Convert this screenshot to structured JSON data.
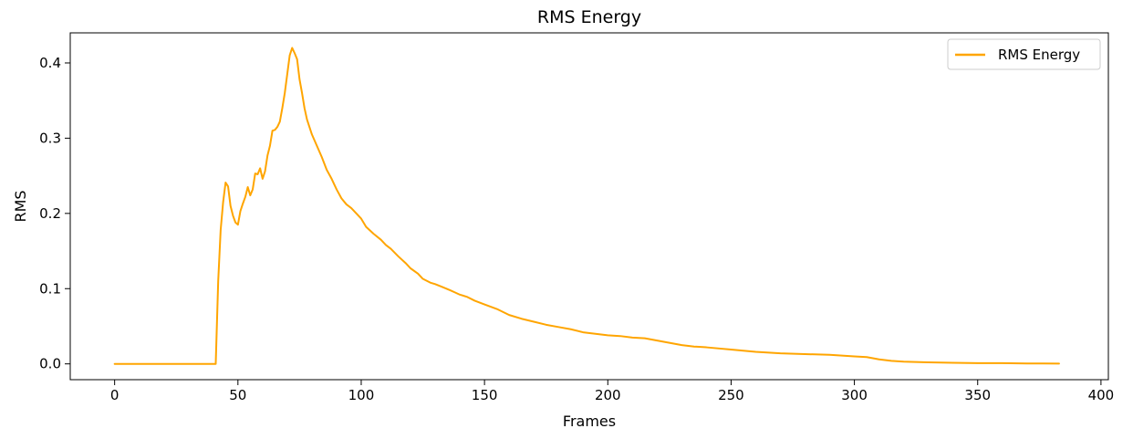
{
  "chart_data": {
    "type": "line",
    "title": "RMS Energy",
    "xlabel": "Frames",
    "ylabel": "RMS",
    "xlim": [
      -18,
      403
    ],
    "ylim": [
      -0.021,
      0.44
    ],
    "xticks": [
      0,
      50,
      100,
      150,
      200,
      250,
      300,
      350,
      400
    ],
    "xtick_labels": [
      "0",
      "50",
      "100",
      "150",
      "200",
      "250",
      "300",
      "350",
      "400"
    ],
    "yticks": [
      0.0,
      0.1,
      0.2,
      0.3,
      0.4
    ],
    "ytick_labels": [
      "0.0",
      "0.1",
      "0.2",
      "0.3",
      "0.4"
    ],
    "grid": false,
    "legend": {
      "position": "top-right",
      "entries": [
        "RMS Energy"
      ]
    },
    "series": [
      {
        "name": "RMS Energy",
        "color": "#ffa500",
        "points": [
          [
            0,
            0.0
          ],
          [
            10,
            0.0
          ],
          [
            20,
            0.0
          ],
          [
            30,
            0.0
          ],
          [
            40,
            0.0
          ],
          [
            41,
            0.0
          ],
          [
            42,
            0.11
          ],
          [
            43,
            0.178
          ],
          [
            44,
            0.215
          ],
          [
            45,
            0.241
          ],
          [
            46,
            0.236
          ],
          [
            47,
            0.21
          ],
          [
            48,
            0.197
          ],
          [
            49,
            0.188
          ],
          [
            50,
            0.185
          ],
          [
            51,
            0.203
          ],
          [
            52,
            0.213
          ],
          [
            53,
            0.222
          ],
          [
            54,
            0.235
          ],
          [
            55,
            0.224
          ],
          [
            56,
            0.232
          ],
          [
            57,
            0.253
          ],
          [
            58,
            0.252
          ],
          [
            59,
            0.26
          ],
          [
            60,
            0.246
          ],
          [
            61,
            0.256
          ],
          [
            62,
            0.277
          ],
          [
            63,
            0.29
          ],
          [
            64,
            0.31
          ],
          [
            65,
            0.311
          ],
          [
            66,
            0.315
          ],
          [
            67,
            0.322
          ],
          [
            68,
            0.34
          ],
          [
            69,
            0.36
          ],
          [
            70,
            0.385
          ],
          [
            71,
            0.41
          ],
          [
            72,
            0.42
          ],
          [
            73,
            0.413
          ],
          [
            74,
            0.405
          ],
          [
            75,
            0.378
          ],
          [
            76,
            0.36
          ],
          [
            77,
            0.34
          ],
          [
            78,
            0.325
          ],
          [
            80,
            0.305
          ],
          [
            82,
            0.29
          ],
          [
            84,
            0.275
          ],
          [
            86,
            0.258
          ],
          [
            88,
            0.246
          ],
          [
            90,
            0.232
          ],
          [
            92,
            0.22
          ],
          [
            94,
            0.212
          ],
          [
            96,
            0.207
          ],
          [
            98,
            0.2
          ],
          [
            100,
            0.193
          ],
          [
            102,
            0.182
          ],
          [
            105,
            0.173
          ],
          [
            108,
            0.165
          ],
          [
            110,
            0.158
          ],
          [
            112,
            0.153
          ],
          [
            115,
            0.143
          ],
          [
            118,
            0.134
          ],
          [
            120,
            0.127
          ],
          [
            123,
            0.12
          ],
          [
            125,
            0.113
          ],
          [
            128,
            0.108
          ],
          [
            130,
            0.106
          ],
          [
            133,
            0.102
          ],
          [
            136,
            0.098
          ],
          [
            138,
            0.095
          ],
          [
            140,
            0.092
          ],
          [
            143,
            0.089
          ],
          [
            146,
            0.084
          ],
          [
            150,
            0.079
          ],
          [
            155,
            0.073
          ],
          [
            160,
            0.065
          ],
          [
            165,
            0.06
          ],
          [
            170,
            0.056
          ],
          [
            175,
            0.052
          ],
          [
            180,
            0.049
          ],
          [
            185,
            0.046
          ],
          [
            190,
            0.042
          ],
          [
            195,
            0.04
          ],
          [
            200,
            0.038
          ],
          [
            205,
            0.037
          ],
          [
            210,
            0.035
          ],
          [
            215,
            0.034
          ],
          [
            220,
            0.031
          ],
          [
            225,
            0.028
          ],
          [
            230,
            0.025
          ],
          [
            235,
            0.023
          ],
          [
            240,
            0.022
          ],
          [
            250,
            0.019
          ],
          [
            260,
            0.016
          ],
          [
            270,
            0.014
          ],
          [
            280,
            0.013
          ],
          [
            290,
            0.012
          ],
          [
            300,
            0.01
          ],
          [
            305,
            0.009
          ],
          [
            310,
            0.006
          ],
          [
            315,
            0.004
          ],
          [
            320,
            0.003
          ],
          [
            330,
            0.002
          ],
          [
            340,
            0.0015
          ],
          [
            350,
            0.001
          ],
          [
            360,
            0.001
          ],
          [
            370,
            0.0006
          ],
          [
            383,
            0.0004
          ]
        ]
      }
    ]
  }
}
